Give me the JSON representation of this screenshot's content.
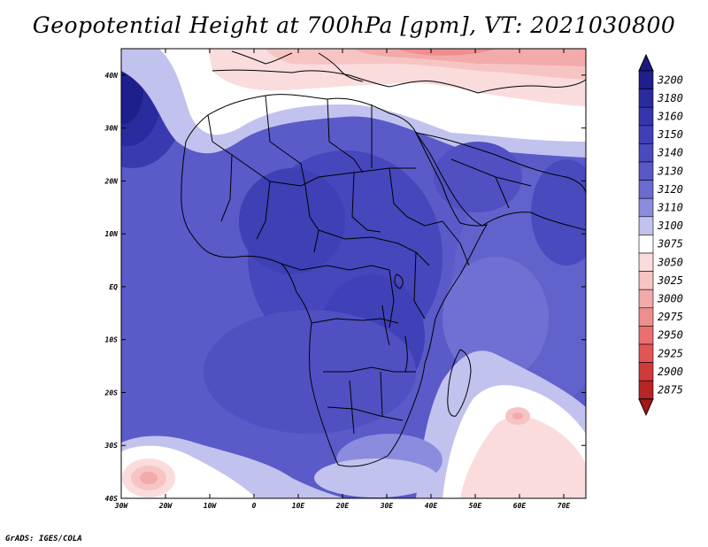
{
  "title": "Geopotential Height at 700hPa [gpm], VT: 2021030800",
  "credit": "GrADS: IGES/COLA",
  "map": {
    "region": "Africa",
    "lat_labels": [
      "40N",
      "30N",
      "20N",
      "10N",
      "EQ",
      "10S",
      "20S",
      "30S",
      "40S"
    ],
    "lat_values": [
      40,
      30,
      20,
      10,
      0,
      -10,
      -20,
      -30,
      -40
    ],
    "lon_labels": [
      "30W",
      "20W",
      "10W",
      "0",
      "10E",
      "20E",
      "30E",
      "40E",
      "50E",
      "60E",
      "70E"
    ],
    "lon_values": [
      -30,
      -20,
      -10,
      0,
      10,
      20,
      30,
      40,
      50,
      60,
      70
    ],
    "lon_range": [
      -30,
      75
    ],
    "lat_range": [
      -40,
      45
    ]
  },
  "colorbar": {
    "levels": [
      "3200",
      "3180",
      "3160",
      "3150",
      "3140",
      "3130",
      "3120",
      "3110",
      "3100",
      "3075",
      "3050",
      "3025",
      "3000",
      "2975",
      "2950",
      "2925",
      "2900",
      "2875"
    ],
    "colors": [
      "#1e1e8c",
      "#2b2ba0",
      "#3535ac",
      "#3f3fb6",
      "#4a4abf",
      "#5858c8",
      "#6b6bd1",
      "#8c8cde",
      "#c2c2ee",
      "#ffffff",
      "#fbdcdc",
      "#f7c4c4",
      "#f3aaaa",
      "#ef8e8e",
      "#ea7070",
      "#e35454",
      "#cf3a3a",
      "#b82424"
    ],
    "top_color": "#1a1a80",
    "bottom_color": "#a01818"
  }
}
